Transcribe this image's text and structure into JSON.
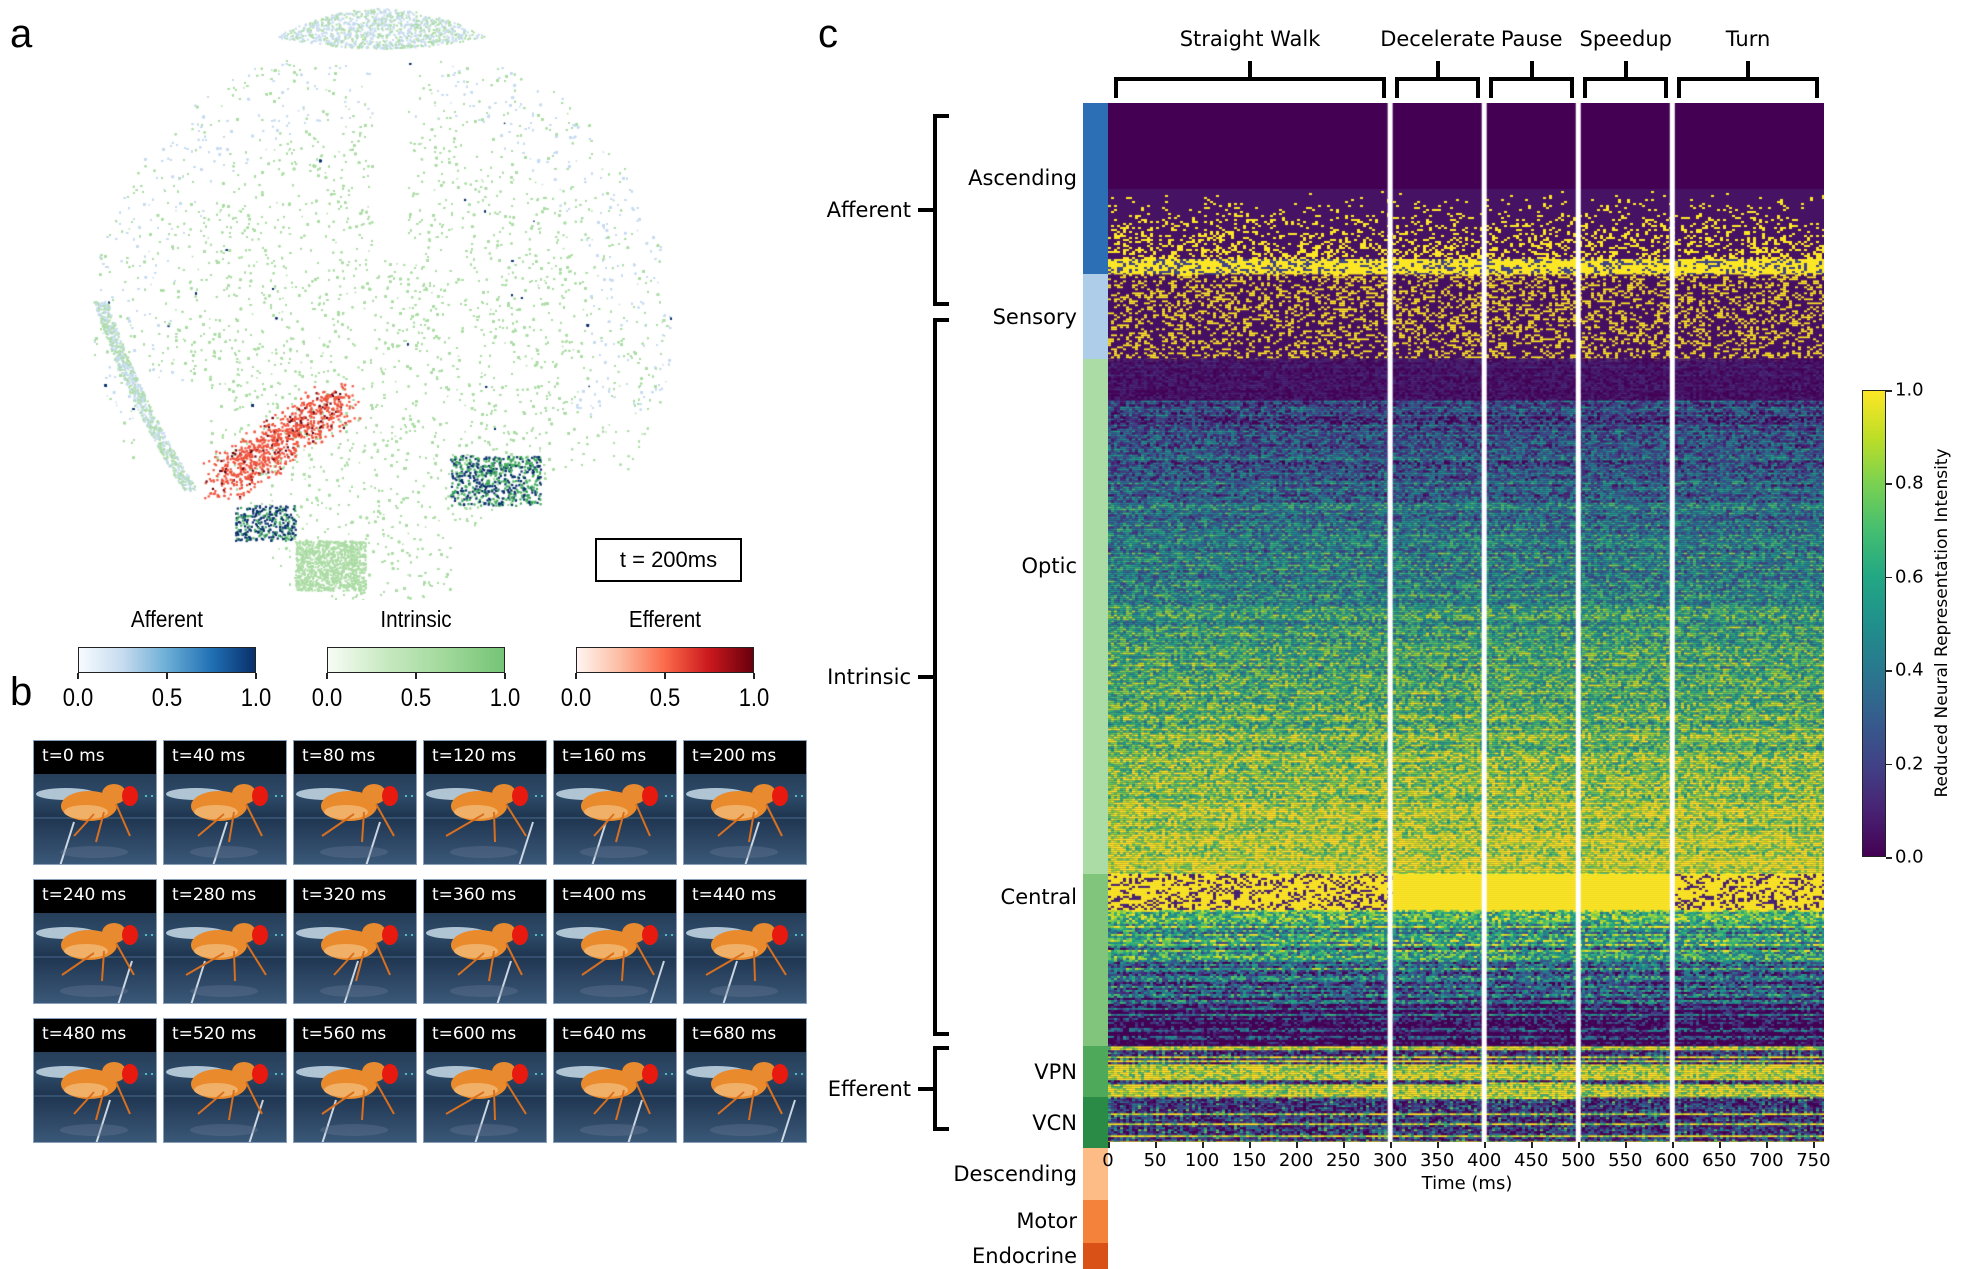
{
  "panels": {
    "a": "a",
    "b": "b",
    "c": "c"
  },
  "panel_a": {
    "time_label": "t = 200ms",
    "colorbars": [
      {
        "title": "Afferent",
        "ticks": [
          "0.0",
          "0.5",
          "1.0"
        ],
        "colors": [
          "#f7fbff",
          "#c6dbef",
          "#6baed6",
          "#2171b5",
          "#08306b"
        ]
      },
      {
        "title": "Intrinsic",
        "ticks": [
          "0.0",
          "0.5",
          "1.0"
        ],
        "colors": [
          "#f7fcf5",
          "#c7e9c0",
          "#a1d99b",
          "#74c476"
        ]
      },
      {
        "title": "Efferent",
        "ticks": [
          "0.0",
          "0.5",
          "1.0"
        ],
        "colors": [
          "#fff5f0",
          "#fcbba1",
          "#fb6a4a",
          "#cb181d",
          "#67000d"
        ]
      }
    ],
    "point_colors": {
      "afferent_low": "#c6dbef",
      "afferent_high": "#08306b",
      "intrinsic": "#acdca5",
      "intrinsic_high": "#41ab5d",
      "efferent": "#f0533c",
      "efferent_high": "#67000d"
    }
  },
  "panel_b": {
    "frames": [
      "t=0 ms",
      "t=40 ms",
      "t=80 ms",
      "t=120 ms",
      "t=160 ms",
      "t=200 ms",
      "t=240 ms",
      "t=280 ms",
      "t=320 ms",
      "t=360 ms",
      "t=400 ms",
      "t=440 ms",
      "t=480 ms",
      "t=520 ms",
      "t=560 ms",
      "t=600 ms",
      "t=640 ms",
      "t=680 ms"
    ]
  },
  "chart_data": {
    "type": "heatmap",
    "title": "",
    "xlabel": "Time (ms)",
    "ylabel": "",
    "xlim": [
      0,
      760
    ],
    "x_ticks": [
      "0",
      "50",
      "100",
      "150",
      "200",
      "250",
      "300",
      "350",
      "400",
      "450",
      "500",
      "550",
      "600",
      "650",
      "700",
      "750"
    ],
    "colorbar": {
      "label": "Reduced Neural Representation Intensity",
      "range": [
        0.0,
        1.0
      ],
      "ticks": [
        "0.0",
        "0.2",
        "0.4",
        "0.6",
        "0.8",
        "1.0"
      ],
      "colormap": "viridis"
    },
    "segments": [
      {
        "name": "Straight Walk",
        "start": 0,
        "end": 300
      },
      {
        "name": "Decelerate",
        "start": 300,
        "end": 400
      },
      {
        "name": "Pause",
        "start": 400,
        "end": 500
      },
      {
        "name": "Speedup",
        "start": 500,
        "end": 600
      },
      {
        "name": "Turn",
        "start": 600,
        "end": 760
      }
    ],
    "groups": [
      {
        "name": "Afferent",
        "rows": [
          "Ascending",
          "Sensory"
        ]
      },
      {
        "name": "Intrinsic",
        "rows": [
          "Optic",
          "Central",
          "VPN",
          "VCN"
        ]
      },
      {
        "name": "Efferent",
        "rows": [
          "Descending",
          "Motor",
          "Endocrine"
        ]
      }
    ],
    "rows": [
      {
        "name": "Ascending",
        "color": "#2c6fb4",
        "share": 0.165,
        "mean_by_segment": [
          0.15,
          0.18,
          0.15,
          0.17,
          0.16
        ]
      },
      {
        "name": "Sensory",
        "color": "#aecde8",
        "share": 0.081,
        "mean_by_segment": [
          0.3,
          0.25,
          0.2,
          0.25,
          0.3
        ]
      },
      {
        "name": "Optic",
        "color": "#acdca5",
        "share": 0.496,
        "mean_by_segment": [
          0.6,
          0.5,
          0.55,
          0.6,
          0.62
        ]
      },
      {
        "name": "Central",
        "color": "#80c57b",
        "share": 0.166,
        "mean_by_segment": [
          0.55,
          0.65,
          0.7,
          0.6,
          0.55
        ]
      },
      {
        "name": "VPN",
        "color": "#4eaa5a",
        "share": 0.049,
        "mean_by_segment": [
          0.75,
          0.75,
          0.78,
          0.75,
          0.75
        ]
      },
      {
        "name": "VCN",
        "color": "#2a8b46",
        "share": 0.049,
        "mean_by_segment": [
          0.35,
          0.4,
          0.4,
          0.35,
          0.35
        ]
      },
      {
        "name": "Descending",
        "color": "#fdbb86",
        "share": 0.05,
        "mean_by_segment": [
          0.45,
          0.5,
          0.5,
          0.45,
          0.45
        ]
      },
      {
        "name": "Motor",
        "color": "#f5823a",
        "share": 0.041,
        "mean_by_segment": [
          0.4,
          0.4,
          0.45,
          0.4,
          0.4
        ]
      },
      {
        "name": "Endocrine",
        "color": "#da5118",
        "share": 0.025,
        "mean_by_segment": [
          0.55,
          0.6,
          0.6,
          0.55,
          0.55
        ]
      }
    ]
  }
}
